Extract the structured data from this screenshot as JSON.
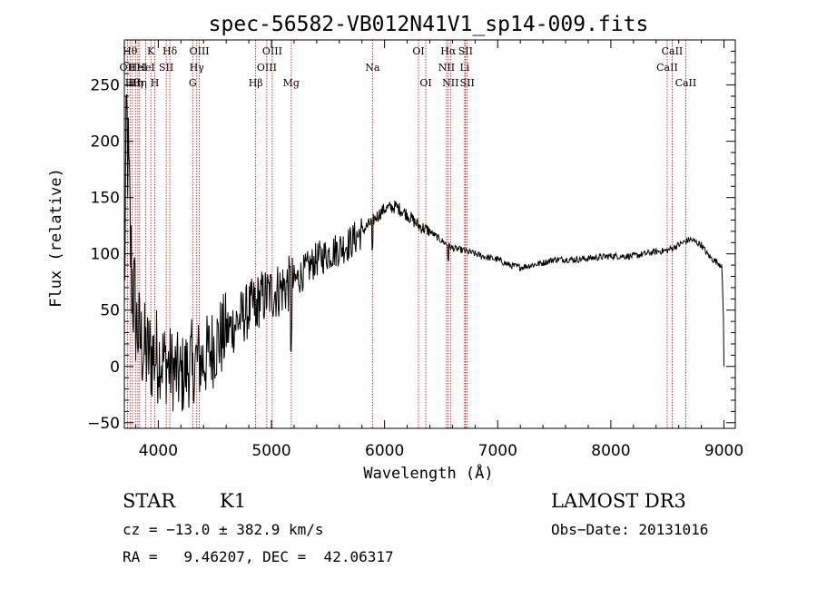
{
  "chart_data": {
    "type": "line",
    "title": "spec-56582-VB012N41V1_sp14-009.fits",
    "xlabel": "Wavelength (Å)",
    "ylabel": "Flux (relative)",
    "xlim": [
      3700,
      9100
    ],
    "ylim": [
      -55,
      290
    ],
    "xticks": [
      4000,
      5000,
      6000,
      7000,
      8000,
      9000
    ],
    "yticks": [
      -50,
      0,
      50,
      100,
      150,
      200,
      250
    ],
    "spectrum": {
      "anchors": [
        [
          3700,
          60
        ],
        [
          3720,
          220
        ],
        [
          3740,
          160
        ],
        [
          3760,
          90
        ],
        [
          3800,
          40
        ],
        [
          3850,
          20
        ],
        [
          3900,
          10
        ],
        [
          4000,
          10
        ],
        [
          4100,
          0
        ],
        [
          4200,
          -10
        ],
        [
          4300,
          5
        ],
        [
          4400,
          5
        ],
        [
          4500,
          20
        ],
        [
          4600,
          30
        ],
        [
          4700,
          40
        ],
        [
          4800,
          50
        ],
        [
          4900,
          60
        ],
        [
          5000,
          65
        ],
        [
          5100,
          70
        ],
        [
          5200,
          75
        ],
        [
          5300,
          85
        ],
        [
          5400,
          95
        ],
        [
          5500,
          100
        ],
        [
          5600,
          105
        ],
        [
          5700,
          110
        ],
        [
          5800,
          120
        ],
        [
          5900,
          130
        ],
        [
          6000,
          140
        ],
        [
          6100,
          142
        ],
        [
          6200,
          135
        ],
        [
          6300,
          125
        ],
        [
          6400,
          120
        ],
        [
          6500,
          112
        ],
        [
          6600,
          105
        ],
        [
          6700,
          103
        ],
        [
          6800,
          100
        ],
        [
          6900,
          97
        ],
        [
          7000,
          95
        ],
        [
          7100,
          90
        ],
        [
          7200,
          88
        ],
        [
          7300,
          90
        ],
        [
          7400,
          92
        ],
        [
          7500,
          95
        ],
        [
          7600,
          95
        ],
        [
          7700,
          95
        ],
        [
          7800,
          96
        ],
        [
          7900,
          97
        ],
        [
          8000,
          98
        ],
        [
          8100,
          98
        ],
        [
          8200,
          98
        ],
        [
          8300,
          100
        ],
        [
          8400,
          102
        ],
        [
          8500,
          103
        ],
        [
          8600,
          108
        ],
        [
          8700,
          113
        ],
        [
          8800,
          108
        ],
        [
          8850,
          100
        ],
        [
          8900,
          95
        ],
        [
          8950,
          92
        ],
        [
          8980,
          90
        ],
        [
          8995,
          45
        ],
        [
          9000,
          0
        ]
      ]
    },
    "spectral_lines": [
      {
        "wavelength": 3727,
        "label": "OII",
        "row": 1
      },
      {
        "wavelength": 3750,
        "label": "Hθ",
        "row": 0
      },
      {
        "wavelength": 3771,
        "label": "Hθ",
        "row": 2
      },
      {
        "wavelength": 3798,
        "label": "Hη",
        "row": 2
      },
      {
        "wavelength": 3820,
        "label": "HeI",
        "row": 1
      },
      {
        "wavelength": 3835,
        "label": "Hη",
        "row": 2
      },
      {
        "wavelength": 3889,
        "label": "HeI",
        "row": 1
      },
      {
        "wavelength": 3934,
        "label": "K",
        "row": 0
      },
      {
        "wavelength": 3969,
        "label": "H",
        "row": 2
      },
      {
        "wavelength": 4070,
        "label": "SII",
        "row": 1
      },
      {
        "wavelength": 4102,
        "label": "Hδ",
        "row": 0
      },
      {
        "wavelength": 4304,
        "label": "G",
        "row": 2
      },
      {
        "wavelength": 4340,
        "label": "Hγ",
        "row": 1
      },
      {
        "wavelength": 4363,
        "label": "OIII",
        "row": 0
      },
      {
        "wavelength": 4861,
        "label": "Hβ",
        "row": 2
      },
      {
        "wavelength": 4959,
        "label": "OIII",
        "row": 1
      },
      {
        "wavelength": 5007,
        "label": "OIII",
        "row": 0
      },
      {
        "wavelength": 5175,
        "label": "Mg",
        "row": 2
      },
      {
        "wavelength": 5893,
        "label": "Na",
        "row": 1
      },
      {
        "wavelength": 6300,
        "label": "OI",
        "row": 0
      },
      {
        "wavelength": 6364,
        "label": "OI",
        "row": 2
      },
      {
        "wavelength": 6548,
        "label": "NII",
        "row": 1
      },
      {
        "wavelength": 6563,
        "label": "Hα",
        "row": 0
      },
      {
        "wavelength": 6583,
        "label": "NII",
        "row": 2
      },
      {
        "wavelength": 6708,
        "label": "Li",
        "row": 1
      },
      {
        "wavelength": 6716,
        "label": "SII",
        "row": 0
      },
      {
        "wavelength": 6731,
        "label": "SII",
        "row": 2
      },
      {
        "wavelength": 8498,
        "label": "CaII",
        "row": 1
      },
      {
        "wavelength": 8542,
        "label": "CaII",
        "row": 0
      },
      {
        "wavelength": 8662,
        "label": "CaII",
        "row": 2
      }
    ]
  },
  "info": {
    "class": "STAR",
    "subclass": "K1",
    "survey": "LAMOST DR3",
    "cz": "cz = −13.0 ± 382.9 km/s",
    "obs_date": "Obs−Date: 20131016",
    "coords": "RA =   9.46207, DEC =  42.06317"
  },
  "colors": {
    "axis": "#000000",
    "spectrum": "#000000",
    "line_marker": "#c00000",
    "background": "#ffffff"
  }
}
